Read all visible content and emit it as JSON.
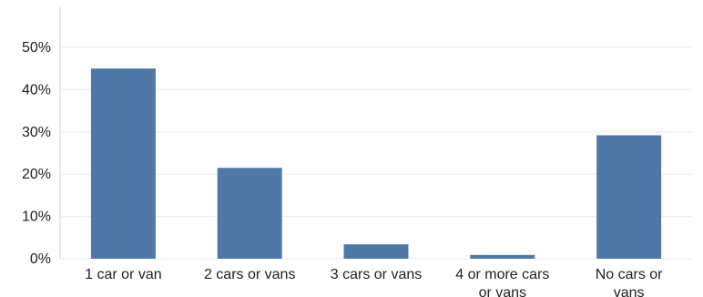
{
  "chart_data": {
    "type": "bar",
    "title": "",
    "xlabel": "",
    "ylabel": "",
    "categories": [
      [
        "1 car or van"
      ],
      [
        "2 cars or vans"
      ],
      [
        "3 cars or vans"
      ],
      [
        "4 or more cars",
        "or vans"
      ],
      [
        "No cars or",
        "vans"
      ]
    ],
    "values": [
      45.0,
      21.5,
      3.4,
      0.9,
      29.2
    ],
    "ylim": [
      0,
      50
    ],
    "yticks": [
      "0%",
      "10%",
      "20%",
      "30%",
      "40%",
      "50%"
    ],
    "ytick_values": [
      0,
      10,
      20,
      30,
      40,
      50
    ],
    "grid": true,
    "colors": {
      "bar": "#4e79a7",
      "grid": "#ececec",
      "axis": "#cfcfcf"
    }
  }
}
